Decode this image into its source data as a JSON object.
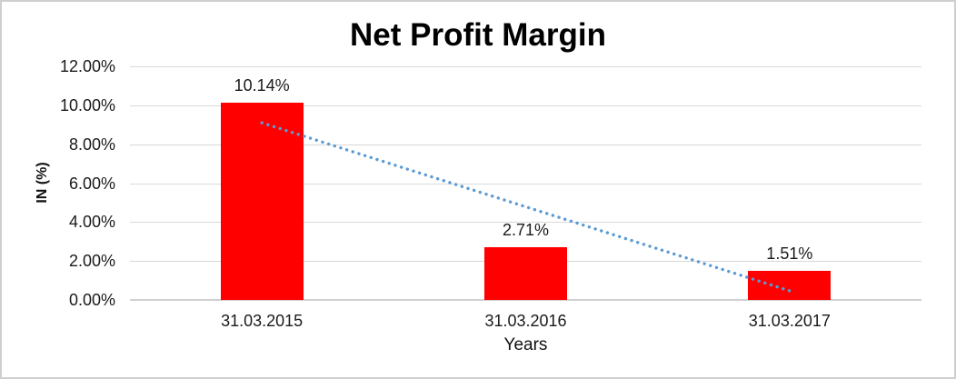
{
  "window": {
    "background": "#ffffff",
    "border_color": "#cfcfcf"
  },
  "chart_data": {
    "type": "bar",
    "title": "Net Profit Margin",
    "xlabel": "Years",
    "ylabel": "IN (%)",
    "categories": [
      "31.03.2015",
      "31.03.2016",
      "31.03.2017"
    ],
    "values": [
      10.14,
      2.71,
      1.51
    ],
    "data_labels": [
      "10.14%",
      "2.71%",
      "1.51%"
    ],
    "ytick_values": [
      0,
      2,
      4,
      6,
      8,
      10,
      12
    ],
    "ytick_labels": [
      "0.00%",
      "2.00%",
      "4.00%",
      "6.00%",
      "8.00%",
      "10.00%",
      "12.00%"
    ],
    "ylim": [
      0,
      12
    ],
    "grid": true,
    "legend": "none",
    "bar_color": "#ff0000",
    "gridline_color": "#d9d9d9",
    "axis_line_color": "#d0d0d0",
    "text_color": "#1a1a1a",
    "trendline": {
      "type": "linear",
      "style": "dotted",
      "color": "#5b9bd5",
      "start_value": 9.1,
      "end_value": 0.47
    }
  }
}
